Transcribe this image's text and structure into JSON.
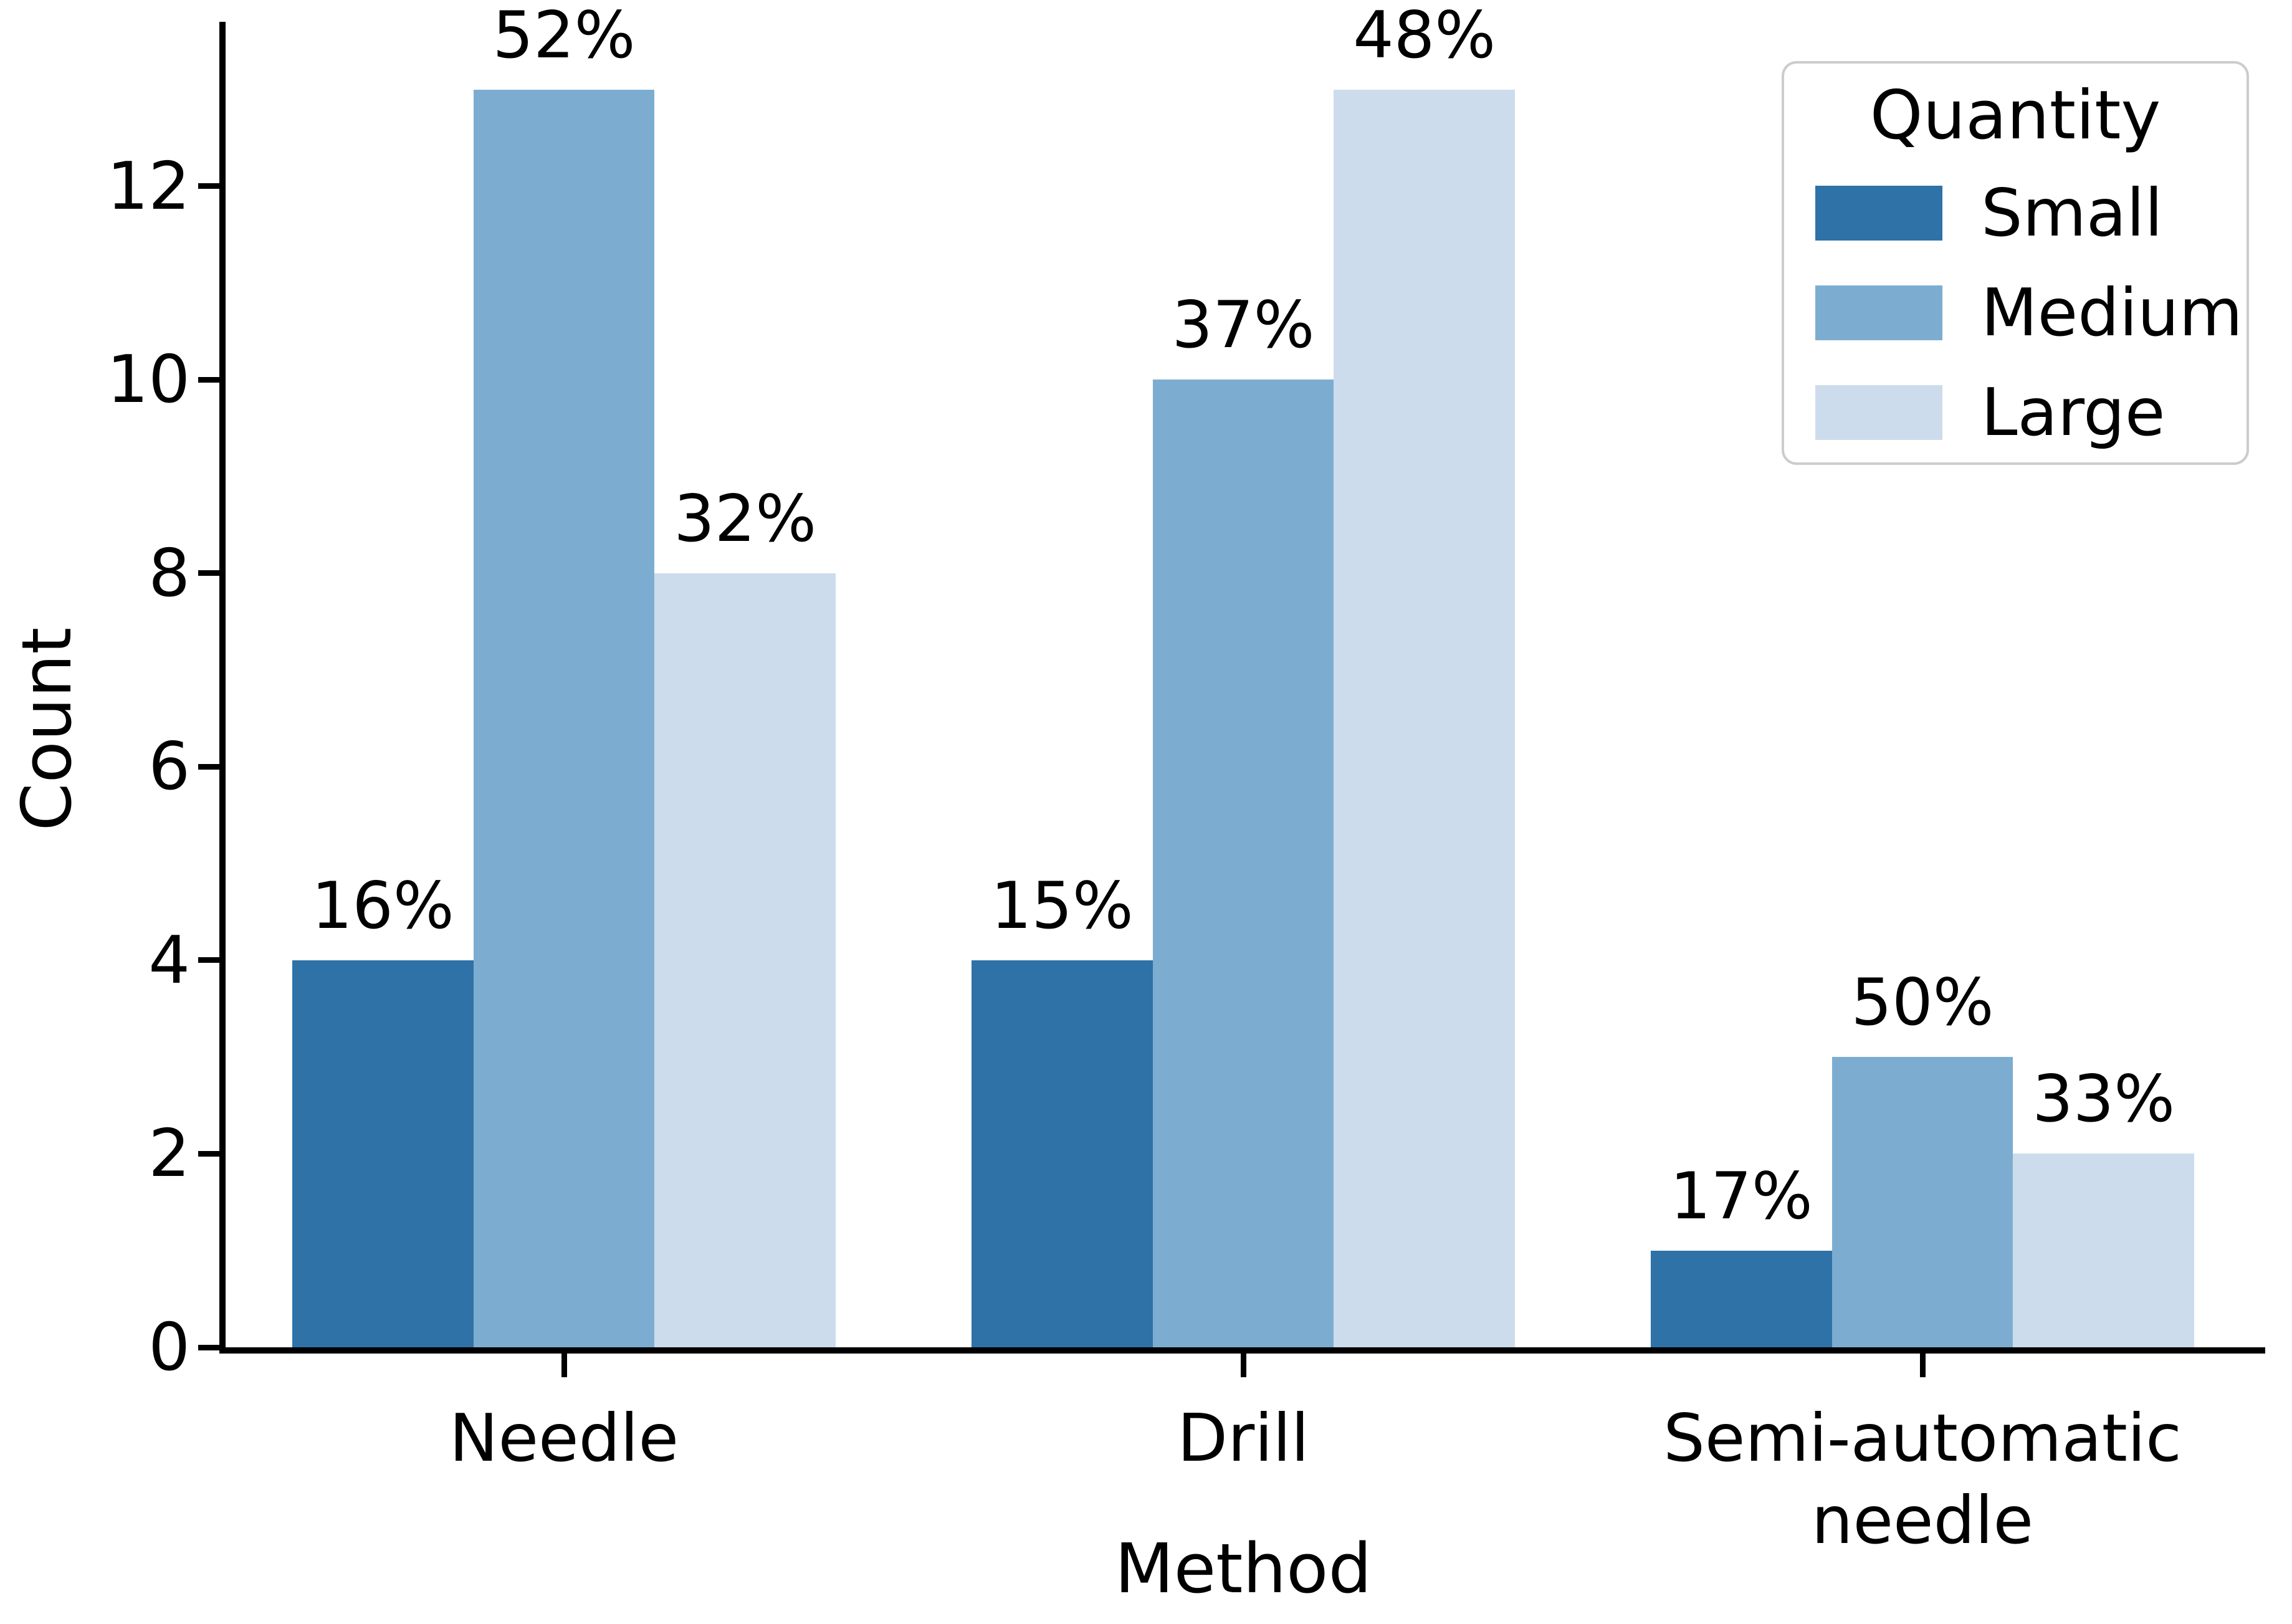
{
  "chart_data": {
    "type": "bar",
    "title": "",
    "xlabel": "Method",
    "ylabel": "Count",
    "categories": [
      "Needle",
      "Drill",
      "Semi-automatic needle"
    ],
    "category_display": [
      "Needle",
      "Drill",
      "Semi-automatic\nneedle"
    ],
    "series": [
      {
        "name": "Small",
        "values": [
          4,
          4,
          1
        ],
        "bar_labels": [
          "16%",
          "15%",
          "17%"
        ],
        "color": "#2e72a7"
      },
      {
        "name": "Medium",
        "values": [
          13,
          10,
          3
        ],
        "bar_labels": [
          "52%",
          "37%",
          "50%"
        ],
        "color": "#7cadd1"
      },
      {
        "name": "Large",
        "values": [
          8,
          13,
          2
        ],
        "bar_labels": [
          "32%",
          "48%",
          "33%"
        ],
        "color": "#cddcec"
      }
    ],
    "yticks": [
      0,
      2,
      4,
      6,
      8,
      10,
      12
    ],
    "ylim": [
      0,
      13.7
    ],
    "grid": false,
    "legend": {
      "title": "Quantity",
      "position": "upper-right",
      "entries": [
        "Small",
        "Medium",
        "Large"
      ]
    }
  }
}
